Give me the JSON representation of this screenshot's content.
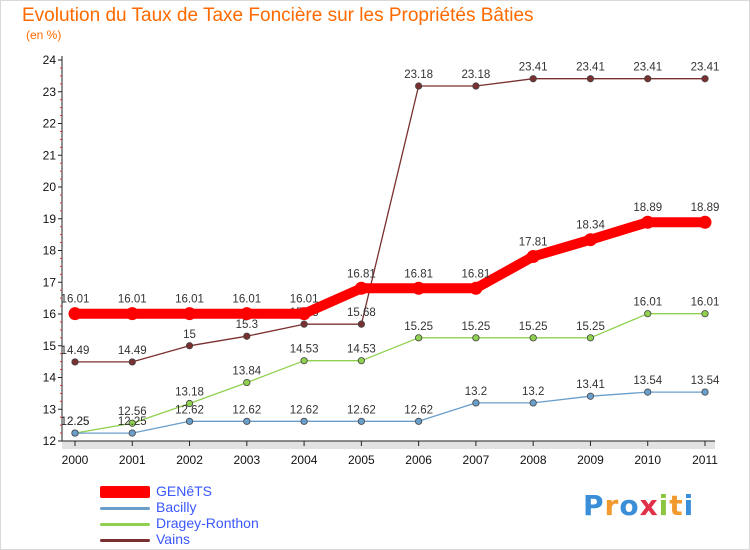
{
  "chart_data": {
    "type": "line",
    "title": "Evolution du Taux de Taxe Foncière sur les Propriétés Bâties",
    "unit": "(en %)",
    "xlabel": "",
    "ylabel": "",
    "ylim": [
      12,
      24
    ],
    "yticks": [
      12,
      13,
      14,
      15,
      16,
      17,
      18,
      19,
      20,
      21,
      22,
      23,
      24
    ],
    "x": [
      "2000",
      "2001",
      "2002",
      "2003",
      "2004",
      "2005",
      "2006",
      "2007",
      "2008",
      "2009",
      "2010",
      "2011"
    ],
    "legend_position": "bottom-left",
    "series": [
      {
        "name": "Vains",
        "color": "#7a3030",
        "values": [
          14.49,
          14.49,
          15,
          15.3,
          15.68,
          15.68,
          23.18,
          23.18,
          23.41,
          23.41,
          23.41,
          23.41
        ],
        "labels": [
          "14.49",
          "14.49",
          "15",
          "15.3",
          "15.68",
          "15.68",
          "23.18",
          "23.18",
          "23.41",
          "23.41",
          "23.41",
          "23.41"
        ]
      },
      {
        "name": "Dragey-Ronthon",
        "color": "#8fd14f",
        "values": [
          12.25,
          12.56,
          13.18,
          13.84,
          14.53,
          14.53,
          15.25,
          15.25,
          15.25,
          15.25,
          16.01,
          16.01
        ],
        "labels": [
          "12.25",
          "12.56",
          "13.18",
          "13.84",
          "14.53",
          "14.53",
          "15.25",
          "15.25",
          "15.25",
          "15.25",
          "16.01",
          "16.01"
        ]
      },
      {
        "name": "Bacilly",
        "color": "#6a9ecb",
        "values": [
          12.25,
          12.25,
          12.62,
          12.62,
          12.62,
          12.62,
          12.62,
          13.2,
          13.2,
          13.41,
          13.54,
          13.54
        ],
        "labels": [
          "12.25",
          "12.25",
          "12.62",
          "12.62",
          "12.62",
          "12.62",
          "12.62",
          "13.2",
          "13.2",
          "13.41",
          "13.54",
          "13.54"
        ]
      },
      {
        "name": "GENêTS",
        "color": "#ff0000",
        "values": [
          16.01,
          16.01,
          16.01,
          16.01,
          16.01,
          16.81,
          16.81,
          16.81,
          17.81,
          18.34,
          18.89,
          18.89
        ],
        "labels": [
          "16.01",
          "16.01",
          "16.01",
          "16.01",
          "16.01",
          "16.81",
          "16.81",
          "16.81",
          "17.81",
          "18.34",
          "18.89",
          "18.89"
        ]
      }
    ]
  },
  "legend": {
    "items": [
      {
        "name": "GENêTS",
        "color": "#ff0000"
      },
      {
        "name": "Bacilly",
        "color": "#6a9ecb"
      },
      {
        "name": "Dragey-Ronthon",
        "color": "#8fd14f"
      },
      {
        "name": "Vains",
        "color": "#7a3030"
      }
    ]
  },
  "logo": {
    "letters": [
      "P",
      "r",
      "o",
      "x",
      "i",
      "t",
      "i"
    ],
    "colors": [
      "#3a8fd8",
      "#f29a2e",
      "#3a8fd8",
      "#e0304a",
      "#8cc63f",
      "#f29a2e",
      "#3a8fd8"
    ]
  }
}
